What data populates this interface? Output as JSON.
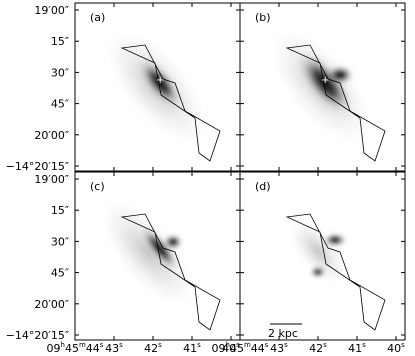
{
  "panels": [
    {
      "label": "(a)"
    },
    {
      "label": "(b)"
    },
    {
      "label": "(c)"
    },
    {
      "label": "(d)"
    }
  ],
  "y_ticks": [
    "19′00″",
    "15″",
    "30″",
    "45″",
    "20′00″",
    "−14°20′15″"
  ],
  "x_ticks": [
    [
      "09",
      "h",
      "45",
      "m",
      "44",
      "s"
    ],
    [
      "43",
      "s"
    ],
    [
      "42",
      "s"
    ],
    [
      "41",
      "s"
    ],
    [
      "40",
      "s"
    ]
  ],
  "scale_bar": "2 kpc"
}
